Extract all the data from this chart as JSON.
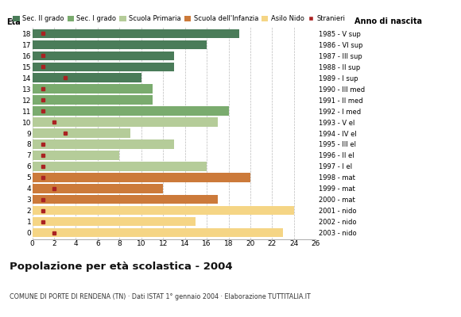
{
  "ages": [
    18,
    17,
    16,
    15,
    14,
    13,
    12,
    11,
    10,
    9,
    8,
    7,
    6,
    5,
    4,
    3,
    2,
    1,
    0
  ],
  "anno_nascita": [
    "1985 - V sup",
    "1986 - VI sup",
    "1987 - III sup",
    "1988 - II sup",
    "1989 - I sup",
    "1990 - III med",
    "1991 - II med",
    "1992 - I med",
    "1993 - V el",
    "1994 - IV el",
    "1995 - III el",
    "1996 - II el",
    "1997 - I el",
    "1998 - mat",
    "1999 - mat",
    "2000 - mat",
    "2001 - nido",
    "2002 - nido",
    "2003 - nido"
  ],
  "bar_values": [
    19,
    16,
    13,
    13,
    10,
    11,
    11,
    18,
    17,
    9,
    13,
    8,
    16,
    20,
    12,
    17,
    24,
    15,
    23
  ],
  "stranieri": [
    1,
    0,
    1,
    1,
    3,
    1,
    1,
    1,
    2,
    3,
    1,
    1,
    1,
    1,
    2,
    1,
    1,
    1,
    2
  ],
  "bar_colors": [
    "#4a7c59",
    "#4a7c59",
    "#4a7c59",
    "#4a7c59",
    "#4a7c59",
    "#7aab6e",
    "#7aab6e",
    "#7aab6e",
    "#b5cc99",
    "#b5cc99",
    "#b5cc99",
    "#b5cc99",
    "#b5cc99",
    "#cc7a3a",
    "#cc7a3a",
    "#cc7a3a",
    "#f5d585",
    "#f5d585",
    "#f5d585"
  ],
  "legend_labels": [
    "Sec. II grado",
    "Sec. I grado",
    "Scuola Primaria",
    "Scuola dell'Infanzia",
    "Asilo Nido",
    "Stranieri"
  ],
  "legend_colors": [
    "#4a7c59",
    "#7aab6e",
    "#b5cc99",
    "#cc7a3a",
    "#f5d585",
    "#aa2222"
  ],
  "title": "Popolazione per età scolastica - 2004",
  "subtitle": "COMUNE DI PORTE DI RENDENA (TN) · Dati ISTAT 1° gennaio 2004 · Elaborazione TUTTITALIA.IT",
  "xlabel_eta": "Età",
  "xlabel_anno": "Anno di nascita",
  "xlim": [
    0,
    26
  ],
  "xticks": [
    0,
    2,
    4,
    6,
    8,
    10,
    12,
    14,
    16,
    18,
    20,
    22,
    24,
    26
  ],
  "stranieri_color": "#aa2222",
  "bar_height": 0.82,
  "background_color": "#ffffff",
  "grid_color": "#bbbbbb"
}
